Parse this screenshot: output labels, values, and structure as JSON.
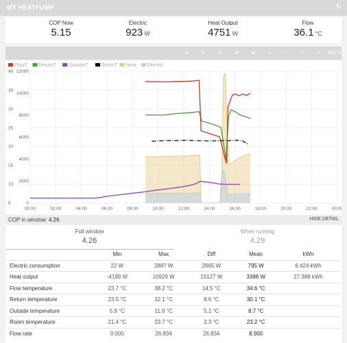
{
  "header": {
    "title": "MY HEATPUMP",
    "refresh_icon": "refresh-icon"
  },
  "stats": [
    {
      "label": "COP Now",
      "value": "5.15",
      "unit": ""
    },
    {
      "label": "Electric",
      "value": "923",
      "unit": "W"
    },
    {
      "label": "Heat Output",
      "value": "4751",
      "unit": "W"
    },
    {
      "label": "Flow",
      "value": "36.1",
      "unit": "°C"
    }
  ],
  "toolbar": {
    "buttons": [
      "H",
      "6",
      "D",
      "W",
      "M",
      "+",
      "-",
      "<",
      ">",
      "BACK"
    ]
  },
  "chart_data": {
    "type": "line",
    "legend": [
      "FlowT",
      "ReturnT",
      "OutsideT",
      "RoomT",
      "Heat",
      "Electric"
    ],
    "colors": {
      "FlowT": "#c0392b",
      "ReturnT": "#4a9a3a",
      "OutsideT": "#8e44ad",
      "RoomT": "#000000",
      "Heat": "#e8c98a",
      "Electric": "#b9cfe3"
    },
    "legend_position": "top-left",
    "y_left_ticks": [
      5,
      10,
      15,
      20,
      25,
      30,
      35,
      40
    ],
    "y_right_ticks": [
      0,
      2000,
      4000,
      6000,
      8000,
      10000,
      12000
    ],
    "x_ticks": [
      "00:00",
      "02:00",
      "04:00",
      "06:00",
      "08:00",
      "10:00",
      "12:00",
      "14:00",
      "16:00",
      "18:00",
      "20:00",
      "22:00",
      "00:00"
    ],
    "x_range_hours": [
      0,
      24
    ],
    "y_left_range": [
      5,
      40
    ],
    "y_right_range": [
      0,
      12000
    ],
    "grid": true,
    "series": [
      {
        "name": "FlowT",
        "axis": "left",
        "points": [
          [
            9.0,
            37.3
          ],
          [
            10.5,
            37.2
          ],
          [
            11.5,
            37.3
          ],
          [
            12.5,
            37.4
          ],
          [
            13.2,
            37.6
          ],
          [
            13.35,
            24.2
          ],
          [
            14.0,
            23.5
          ],
          [
            14.8,
            22.6
          ],
          [
            15.0,
            20.0
          ],
          [
            15.2,
            17.0
          ],
          [
            15.35,
            15.5
          ],
          [
            15.45,
            30.5
          ],
          [
            15.6,
            32.0
          ],
          [
            15.8,
            33.7
          ],
          [
            16.0,
            34.0
          ],
          [
            16.3,
            33.5
          ],
          [
            16.6,
            34.0
          ],
          [
            16.9,
            33.6
          ],
          [
            17.2,
            34.2
          ]
        ]
      },
      {
        "name": "ReturnT",
        "axis": "left",
        "points": [
          [
            9.0,
            28.4
          ],
          [
            10.5,
            28.4
          ],
          [
            11.5,
            28.8
          ],
          [
            12.5,
            29.0
          ],
          [
            13.2,
            29.3
          ],
          [
            13.4,
            26.8
          ],
          [
            14.2,
            26.0
          ],
          [
            14.9,
            25.1
          ],
          [
            15.1,
            21.0
          ],
          [
            15.3,
            16.5
          ],
          [
            15.5,
            28.0
          ],
          [
            15.7,
            29.8
          ],
          [
            16.0,
            29.3
          ],
          [
            16.4,
            28.4
          ],
          [
            17.2,
            27.5
          ]
        ]
      },
      {
        "name": "OutsideT",
        "axis": "left",
        "points": [
          [
            0,
            6.3
          ],
          [
            5.0,
            6.3
          ],
          [
            5.5,
            6.5
          ],
          [
            6.0,
            6.8
          ],
          [
            7.0,
            7.2
          ],
          [
            8.0,
            7.6
          ],
          [
            9.0,
            8.0
          ],
          [
            10.0,
            8.5
          ],
          [
            11.0,
            8.9
          ],
          [
            12.0,
            9.4
          ],
          [
            12.5,
            9.7
          ],
          [
            12.9,
            10.1
          ],
          [
            13.3,
            10.8
          ],
          [
            14.0,
            10.5
          ],
          [
            14.7,
            10.1
          ],
          [
            15.2,
            10.0
          ],
          [
            16.4,
            10.0
          ]
        ]
      },
      {
        "name": "RoomT",
        "axis": "left",
        "points": [
          [
            9.5,
            21.4
          ],
          [
            10.5,
            21.6
          ],
          [
            11.5,
            21.6
          ],
          [
            12.0,
            21.7
          ],
          [
            13.0,
            21.6
          ],
          [
            14.0,
            21.5
          ],
          [
            15.0,
            21.6
          ],
          [
            15.6,
            21.6
          ],
          [
            16.2,
            21.7
          ],
          [
            16.6,
            21.5
          ],
          [
            17.0,
            20.7
          ]
        ]
      },
      {
        "name": "Heat",
        "axis": "right",
        "points": [
          [
            9.0,
            4200
          ],
          [
            12.0,
            4300
          ],
          [
            13.25,
            4350
          ],
          [
            13.35,
            0
          ],
          [
            14.8,
            0
          ],
          [
            14.95,
            1300
          ],
          [
            15.1,
            11500
          ],
          [
            15.25,
            11800
          ],
          [
            15.4,
            6000
          ],
          [
            15.55,
            3500
          ],
          [
            15.8,
            3700
          ],
          [
            16.2,
            4000
          ],
          [
            16.6,
            4300
          ],
          [
            17.2,
            4500
          ]
        ]
      },
      {
        "name": "Electric",
        "axis": "right",
        "points": [
          [
            9.0,
            900
          ],
          [
            12.0,
            900
          ],
          [
            13.25,
            920
          ],
          [
            13.35,
            0
          ],
          [
            14.8,
            0
          ],
          [
            15.0,
            3000
          ],
          [
            15.2,
            2800
          ],
          [
            15.45,
            700
          ],
          [
            15.7,
            800
          ],
          [
            16.2,
            820
          ],
          [
            17.2,
            850
          ]
        ]
      }
    ]
  },
  "cop_window": {
    "label": "COP in window:",
    "value": "4.26",
    "hide_label": "HIDE DETAIL"
  },
  "windows": [
    {
      "label": "Full window",
      "value": "4.26"
    },
    {
      "label": "When running",
      "value": "4.29"
    }
  ],
  "summary": {
    "headers": [
      "",
      "Min",
      "Max",
      "Diff",
      "Mean",
      "kWh"
    ],
    "rows": [
      [
        "Electric consumption",
        "22 W",
        "2887 W",
        "2865 W",
        "795 W",
        "6.424 kWh"
      ],
      [
        "Heat output",
        "-4199 W",
        "10929 W",
        "15127 W",
        "3388 W",
        "27.388 kWh"
      ],
      [
        "Flow temperature",
        "23.7 °C",
        "38.2 °C",
        "14.5 °C",
        "34.6 °C",
        ""
      ],
      [
        "Return temperature",
        "23.5 °C",
        "32.1 °C",
        "8.6 °C",
        "30.1 °C",
        ""
      ],
      [
        "Outside temperature",
        "5.9 °C",
        "11.0 °C",
        "5.1 °C",
        "8.7 °C",
        ""
      ],
      [
        "Room temperature",
        "21.4 °C",
        "23.7 °C",
        "2.3 °C",
        "23.2 °C",
        ""
      ],
      [
        "Flow rate",
        "0.000",
        "26.834",
        "26.834",
        "8.900",
        ""
      ]
    ]
  }
}
